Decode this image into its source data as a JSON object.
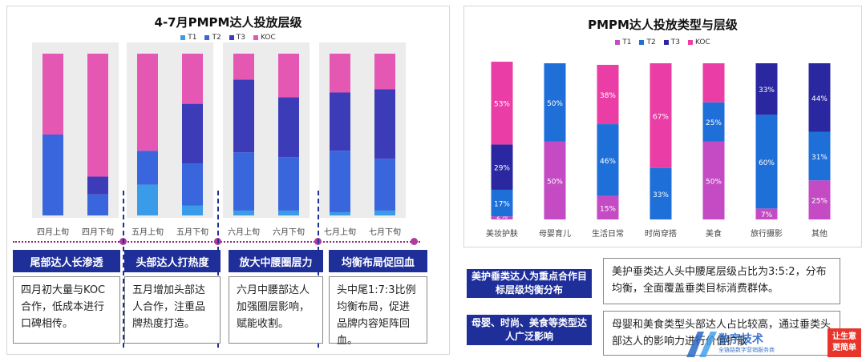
{
  "left": {
    "title": "4-7月PMPM达人投放层级",
    "legend": [
      {
        "name": "T1",
        "color": "#3a9ce8"
      },
      {
        "name": "T2",
        "color": "#3a66dd"
      },
      {
        "name": "T3",
        "color": "#3d3cb8"
      },
      {
        "name": "KOC",
        "color": "#e458b4"
      }
    ],
    "sections": [
      {
        "heading": "尾部达人长渗透",
        "text": "四月初大量与KOC合作，低成本进行口碑相传。"
      },
      {
        "heading": "头部达人打热度",
        "text": "五月增加头部达人合作，注重品牌热度打造。"
      },
      {
        "heading": "放大中腰圈层力",
        "text": "六月中腰部达人加强圈层影响，赋能收割。"
      },
      {
        "heading": "均衡布局促回血",
        "text": "头中尾1:7:3比例均衡布局，促进品牌内容矩阵回血。"
      }
    ]
  },
  "right": {
    "title": "PMPM达人投放类型与层级",
    "legend": [
      {
        "name": "T1",
        "color": "#c44bc4"
      },
      {
        "name": "T2",
        "color": "#1e6fd8"
      },
      {
        "name": "T3",
        "color": "#2a27a0"
      },
      {
        "name": "KOC",
        "color": "#ea3ea6"
      }
    ],
    "notes": [
      {
        "heading": "美护垂类达人为重点合作目标层级均衡分布",
        "text": "美护垂类达人头中腰尾层级占比为3:5:2，分布均衡，全面覆盖垂类目标消费群体。"
      },
      {
        "heading": "母婴、时尚、美食等类型达人广泛影响",
        "text": "母婴和美食类型头部达人占比较高，通过垂类头部达人的影响力进行价值扩散"
      }
    ]
  },
  "badge": {
    "line1": "让生意",
    "line2": "更简单"
  },
  "watermark": {
    "text": "数字技术",
    "sub": "全链路数字营销服务商"
  },
  "chart_data": [
    {
      "type": "bar",
      "stacked": true,
      "title": "4-7月PMPM达人投放层级",
      "categories": [
        "四月上旬",
        "四月下旬",
        "五月上旬",
        "五月下旬",
        "六月上旬",
        "六月下旬",
        "七月上旬",
        "七月下旬"
      ],
      "series": [
        {
          "name": "T1",
          "values": [
            0,
            0,
            19,
            6,
            3,
            3,
            2,
            3
          ]
        },
        {
          "name": "T2",
          "values": [
            50,
            13,
            21,
            26,
            36,
            33,
            38,
            32
          ]
        },
        {
          "name": "T3",
          "values": [
            0,
            11,
            0,
            37,
            45,
            37,
            36,
            43
          ]
        },
        {
          "name": "KOC",
          "values": [
            50,
            76,
            60,
            31,
            16,
            27,
            24,
            22
          ]
        }
      ],
      "ylim": [
        0,
        100
      ],
      "grid": false,
      "legend": "top"
    },
    {
      "type": "bar",
      "stacked": true,
      "title": "PMPM达人投放类型与层级",
      "categories": [
        "美妆护肤",
        "母婴育儿",
        "生活日常",
        "时尚穿搭",
        "美食",
        "旅行摄影",
        "其他"
      ],
      "series": [
        {
          "name": "T1",
          "values": [
            2,
            50,
            15,
            0,
            50,
            7,
            25
          ],
          "labels": [
            "2%",
            "50%",
            "15%",
            "",
            "50%",
            "7%",
            "25%"
          ]
        },
        {
          "name": "T2",
          "values": [
            17,
            50,
            46,
            33,
            25,
            60,
            31
          ],
          "labels": [
            "17%",
            "50%",
            "46%",
            "33%",
            "25%",
            "60%",
            "31%"
          ]
        },
        {
          "name": "T3",
          "values": [
            29,
            0,
            0,
            0,
            0,
            33,
            44
          ],
          "labels": [
            "29%",
            "",
            "",
            "",
            "",
            "33%",
            "44%"
          ]
        },
        {
          "name": "KOC",
          "values": [
            53,
            0,
            38,
            67,
            25,
            0,
            0
          ],
          "labels": [
            "53%",
            "",
            "38%",
            "67%",
            "",
            "",
            ""
          ]
        }
      ],
      "ylim": [
        0,
        100
      ],
      "grid": false,
      "legend": "top"
    }
  ]
}
